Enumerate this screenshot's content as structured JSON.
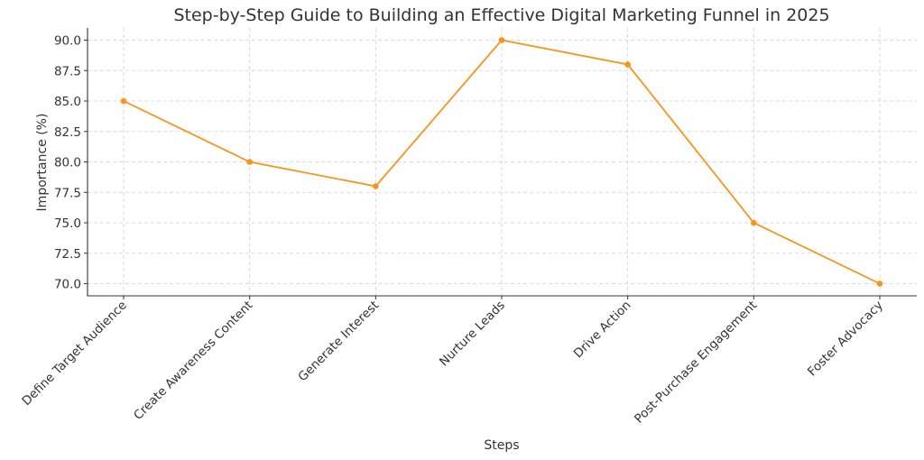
{
  "chart_data": {
    "type": "line",
    "title": "Step-by-Step Guide to Building an Effective Digital Marketing Funnel in 2025",
    "xlabel": "Steps",
    "ylabel": "Importance (%)",
    "categories": [
      "Define Target Audience",
      "Create Awareness Content",
      "Generate Interest",
      "Nurture Leads",
      "Drive Action",
      "Post-Purchase Engagement",
      "Foster Advocacy"
    ],
    "series": [
      {
        "values": [
          85,
          80,
          78,
          90,
          88,
          75,
          70
        ],
        "color": "#f7941d"
      }
    ],
    "ylim": [
      69,
      91
    ],
    "yticks": [
      "70.0",
      "72.5",
      "75.0",
      "77.5",
      "80.0",
      "82.5",
      "85.0",
      "87.5",
      "90.0"
    ],
    "grid": true,
    "legend": "none"
  }
}
